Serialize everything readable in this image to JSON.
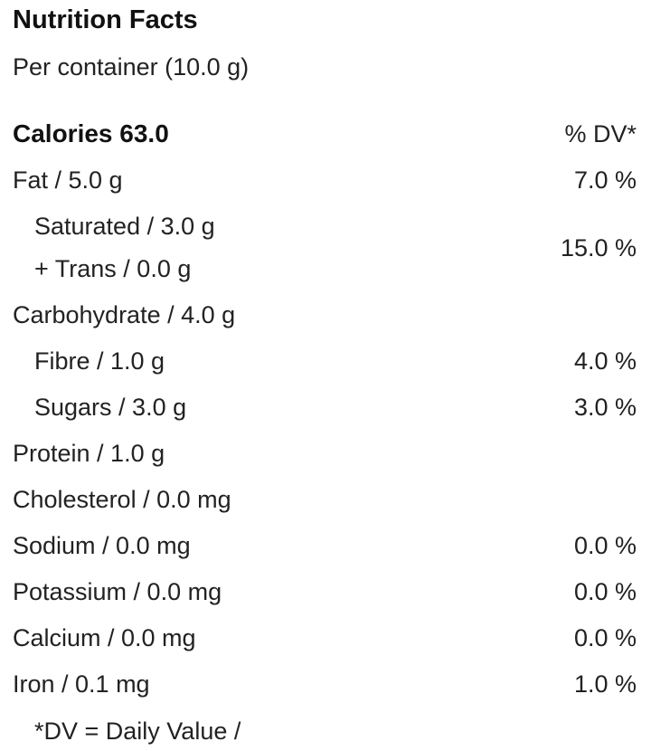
{
  "title": "Nutrition Facts",
  "serving": "Per container (10.0 g)",
  "calories": {
    "label": "Calories 63.0",
    "dv_header": "% DV*"
  },
  "nutrients": {
    "fat": {
      "label": "Fat / 5.0 g",
      "dv": "7.0 %"
    },
    "saturated": {
      "label": "Saturated / 3.0 g"
    },
    "trans": {
      "label": "+ Trans / 0.0 g"
    },
    "sat_trans_dv": "15.0 %",
    "carbohydrate": {
      "label": "Carbohydrate / 4.0 g"
    },
    "fibre": {
      "label": "Fibre / 1.0 g",
      "dv": "4.0 %"
    },
    "sugars": {
      "label": "Sugars / 3.0 g",
      "dv": "3.0 %"
    },
    "protein": {
      "label": "Protein / 1.0 g"
    },
    "cholesterol": {
      "label": "Cholesterol / 0.0 mg"
    },
    "sodium": {
      "label": "Sodium / 0.0 mg",
      "dv": "0.0 %"
    },
    "potassium": {
      "label": "Potassium / 0.0 mg",
      "dv": "0.0 %"
    },
    "calcium": {
      "label": "Calcium / 0.0 mg",
      "dv": "0.0 %"
    },
    "iron": {
      "label": "Iron / 0.1 mg",
      "dv": "1.0 %"
    }
  },
  "footnote": "*DV = Daily Value /"
}
